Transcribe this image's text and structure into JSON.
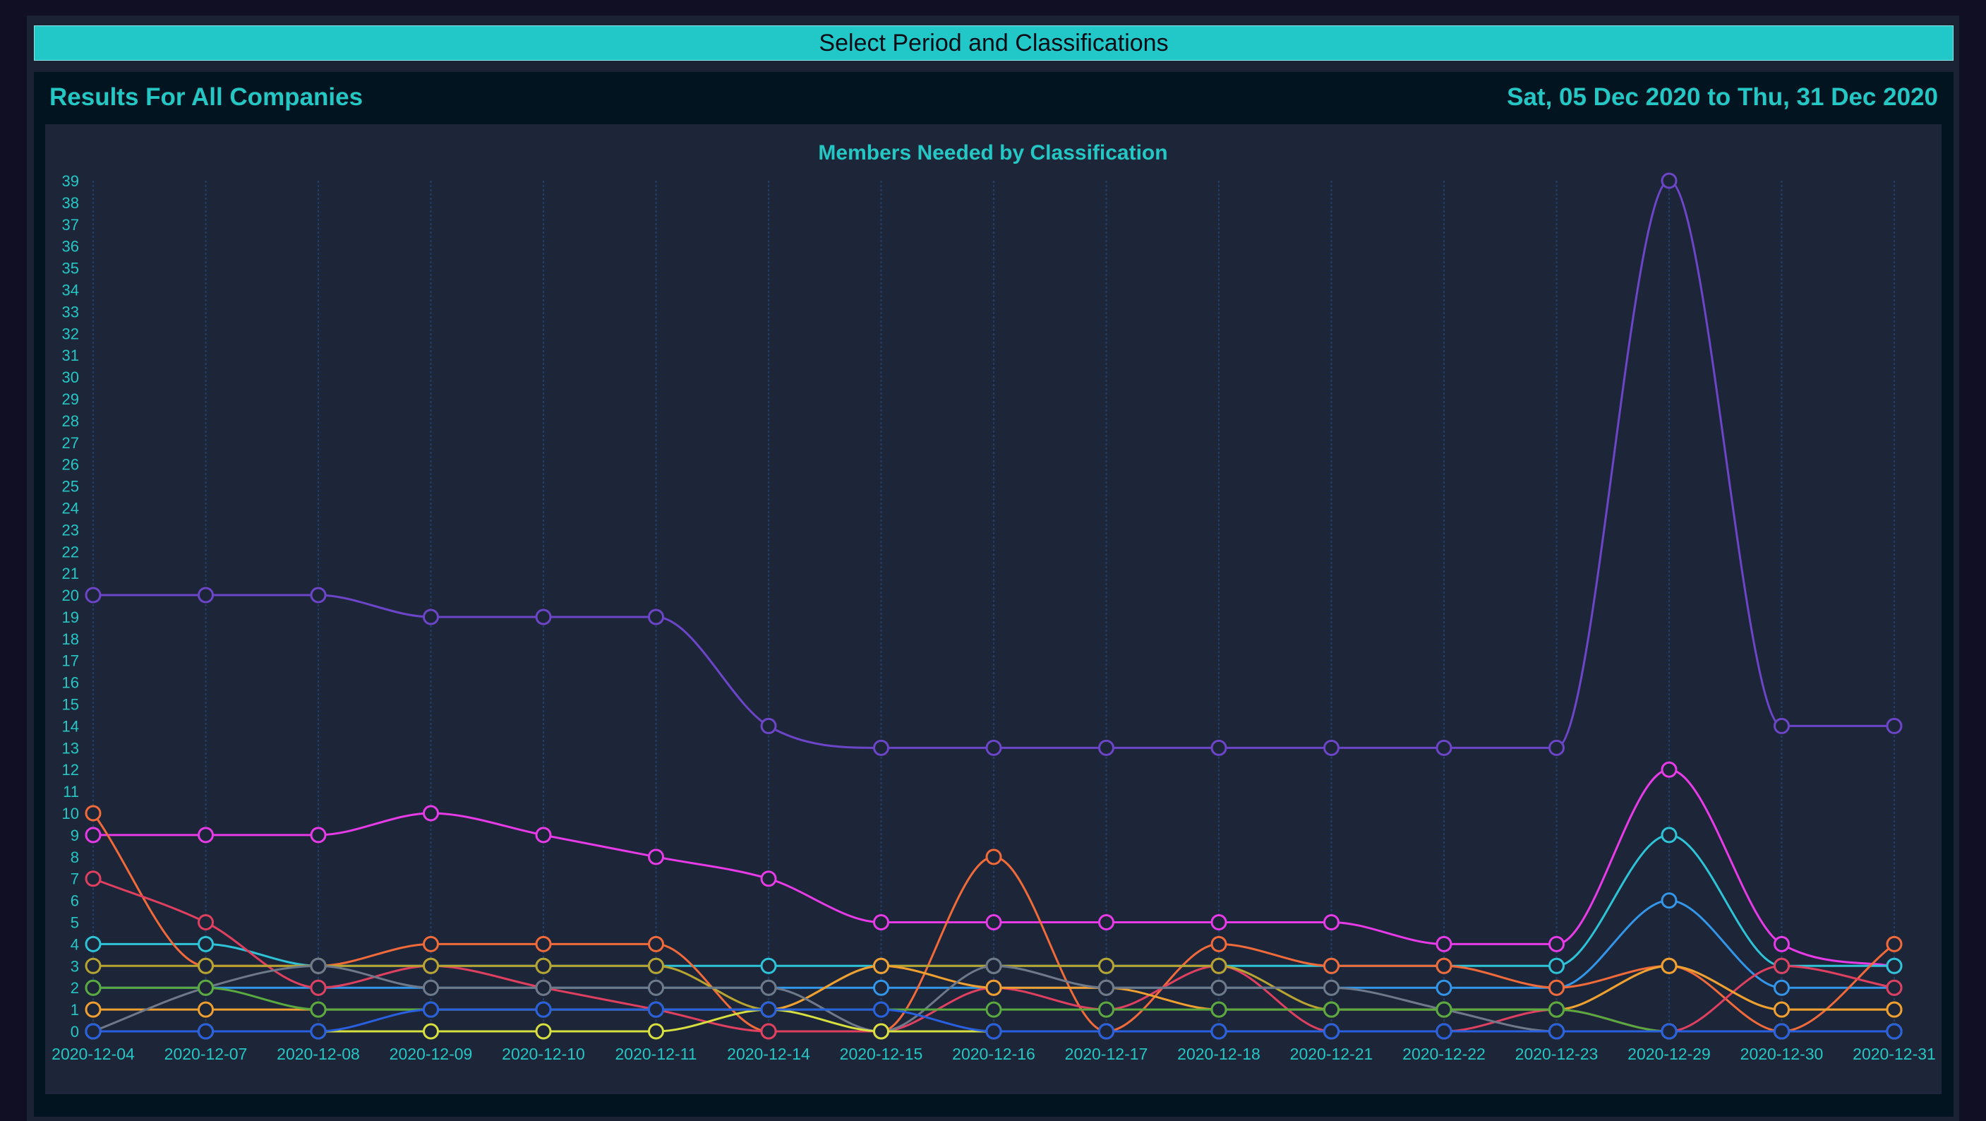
{
  "header": {
    "select_button": "Select Period and Classifications",
    "results_title": "Results For All Companies",
    "date_range": "Sat, 05 Dec 2020 to Thu, 31 Dec 2020"
  },
  "colors": {
    "accent": "#22c8c8",
    "panel": "#021420",
    "chart_bg": "#1d2639",
    "text": "#25c7c4"
  },
  "chart_data": {
    "type": "line",
    "title": "Members Needed by Classification",
    "xlabel": "",
    "ylabel": "",
    "ylim": [
      0,
      39
    ],
    "yticks": [
      0,
      1,
      2,
      3,
      4,
      5,
      6,
      7,
      8,
      9,
      10,
      11,
      12,
      13,
      14,
      15,
      16,
      17,
      18,
      19,
      20,
      21,
      22,
      23,
      24,
      25,
      26,
      27,
      28,
      29,
      30,
      31,
      32,
      33,
      34,
      35,
      36,
      37,
      38,
      39
    ],
    "grid": "vertical",
    "smooth": true,
    "categories": [
      "2020-12-04",
      "2020-12-07",
      "2020-12-08",
      "2020-12-09",
      "2020-12-10",
      "2020-12-11",
      "2020-12-14",
      "2020-12-15",
      "2020-12-16",
      "2020-12-17",
      "2020-12-18",
      "2020-12-21",
      "2020-12-22",
      "2020-12-23",
      "2020-12-29",
      "2020-12-30",
      "2020-12-31"
    ],
    "series": [
      {
        "color": "#6c45c8",
        "values": [
          20,
          20,
          20,
          19,
          19,
          19,
          14,
          13,
          13,
          13,
          13,
          13,
          13,
          13,
          39,
          14,
          14
        ]
      },
      {
        "color": "#e83be8",
        "values": [
          9,
          9,
          9,
          10,
          9,
          8,
          7,
          5,
          5,
          5,
          5,
          5,
          4,
          4,
          12,
          4,
          3
        ]
      },
      {
        "color": "#2ec3d6",
        "values": [
          4,
          4,
          3,
          3,
          3,
          3,
          3,
          3,
          3,
          3,
          3,
          3,
          3,
          3,
          9,
          3,
          3
        ]
      },
      {
        "color": "#3396e8",
        "values": [
          2,
          2,
          2,
          2,
          2,
          2,
          2,
          2,
          2,
          2,
          2,
          2,
          2,
          2,
          6,
          2,
          2
        ]
      },
      {
        "color": "#f06a3a",
        "values": [
          10,
          3,
          3,
          4,
          4,
          4,
          0,
          0,
          8,
          0,
          4,
          3,
          3,
          2,
          3,
          0,
          4
        ]
      },
      {
        "color": "#e04060",
        "values": [
          7,
          5,
          2,
          3,
          2,
          1,
          0,
          0,
          2,
          1,
          3,
          0,
          0,
          1,
          0,
          3,
          2
        ]
      },
      {
        "color": "#b8a430",
        "values": [
          3,
          3,
          3,
          3,
          3,
          3,
          1,
          3,
          3,
          3,
          3,
          1,
          1,
          1,
          3,
          1,
          1
        ]
      },
      {
        "color": "#f0a030",
        "values": [
          1,
          1,
          1,
          1,
          1,
          1,
          1,
          3,
          2,
          2,
          1,
          1,
          1,
          1,
          3,
          1,
          1
        ]
      },
      {
        "color": "#6e7a8a",
        "values": [
          0,
          2,
          3,
          2,
          2,
          2,
          2,
          0,
          3,
          2,
          2,
          2,
          1,
          0,
          0,
          0,
          0
        ]
      },
      {
        "color": "#5aaa40",
        "values": [
          2,
          2,
          1,
          1,
          1,
          1,
          1,
          1,
          1,
          1,
          1,
          1,
          1,
          1,
          0,
          0,
          0
        ]
      },
      {
        "color": "#d8e040",
        "values": [
          0,
          0,
          0,
          0,
          0,
          0,
          1,
          0,
          0,
          0,
          0,
          0,
          0,
          0,
          0,
          0,
          0
        ]
      },
      {
        "color": "#2860e0",
        "values": [
          0,
          0,
          0,
          1,
          1,
          1,
          1,
          1,
          0,
          0,
          0,
          0,
          0,
          0,
          0,
          0,
          0
        ]
      }
    ]
  }
}
